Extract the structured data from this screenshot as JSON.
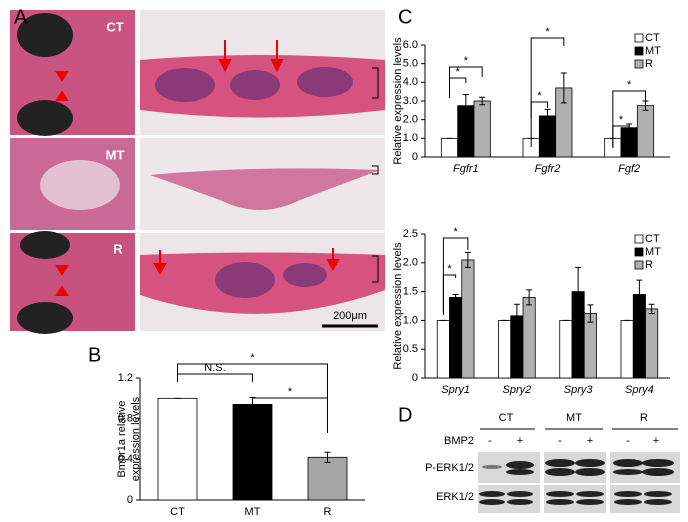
{
  "panel_labels": [
    "A",
    "B",
    "C",
    "D"
  ],
  "panel_a": {
    "rows": [
      "CT",
      "MT",
      "R"
    ],
    "scale_bar": "200μm"
  },
  "chart_data": [
    {
      "type": "bar",
      "ylabel": [
        "Bmpr1a relative",
        "expression levels"
      ],
      "categories": [
        "CT",
        "MT",
        "R"
      ],
      "values": [
        1,
        0.94,
        0.42
      ],
      "errors": [
        0,
        0.07,
        0.05
      ],
      "colors": [
        "#ffffff",
        "#000000",
        "#a6a6a6"
      ],
      "ylim": [
        0,
        1.2
      ],
      "yticks": [
        0,
        0.4,
        0.8,
        1.2
      ],
      "annotations": [
        "N.S.",
        "*",
        "*"
      ]
    },
    {
      "type": "bar",
      "ylabel": "Relative expression levels",
      "categories": [
        "Fgfr1",
        "Fgfr2",
        "Fgf2"
      ],
      "series": [
        {
          "name": "CT",
          "color": "#ffffff",
          "values": [
            1,
            1,
            1
          ],
          "errors": [
            0,
            0,
            0
          ]
        },
        {
          "name": "MT",
          "color": "#000000",
          "values": [
            2.75,
            2.2,
            1.57
          ],
          "errors": [
            0.6,
            0.35,
            0.2
          ]
        },
        {
          "name": "R",
          "color": "#b0b0b0",
          "values": [
            3.0,
            3.7,
            2.75
          ],
          "errors": [
            0.2,
            0.8,
            0.25
          ]
        }
      ],
      "ylim": [
        0,
        6
      ],
      "yticks": [
        0,
        {
          "value": 1,
          "label": "1.0"
        },
        {
          "value": 2,
          "label": "2.0"
        },
        {
          "value": 3,
          "label": "3.0"
        },
        {
          "value": 4,
          "label": "4.0"
        },
        {
          "value": 5,
          "label": "5.0"
        },
        {
          "value": 6,
          "label": "6.0"
        }
      ],
      "legend": "top-right",
      "annotations": [
        "*",
        "*",
        "*",
        "*",
        "*",
        "*"
      ]
    },
    {
      "type": "bar",
      "ylabel": "Relative expression levels",
      "categories": [
        "Spry1",
        "Spry2",
        "Spry3",
        "Spry4"
      ],
      "series": [
        {
          "name": "CT",
          "color": "#ffffff",
          "values": [
            1,
            1,
            1,
            1
          ],
          "errors": [
            0,
            0,
            0,
            0
          ]
        },
        {
          "name": "MT",
          "color": "#000000",
          "values": [
            1.4,
            1.08,
            1.5,
            1.45
          ],
          "errors": [
            0.05,
            0.2,
            0.42,
            0.25
          ]
        },
        {
          "name": "R",
          "color": "#b0b0b0",
          "values": [
            2.05,
            1.4,
            1.12,
            1.2
          ],
          "errors": [
            0.13,
            0.13,
            0.15,
            0.08
          ]
        }
      ],
      "ylim": [
        0,
        2.5
      ],
      "yticks": [
        0,
        0.5,
        {
          "value": 1,
          "label": "1.0"
        },
        1.5,
        {
          "value": 2,
          "label": "2.0"
        },
        2.5
      ],
      "legend": "top-right",
      "annotations": [
        "*",
        "*"
      ]
    }
  ],
  "panel_d": {
    "groups": [
      "CT",
      "MT",
      "R"
    ],
    "treatment": "BMP2",
    "lanes": [
      "-",
      "+",
      "-",
      "+",
      "-",
      "+"
    ],
    "rows": [
      "P-ERK1/2",
      "ERK1/2"
    ]
  }
}
